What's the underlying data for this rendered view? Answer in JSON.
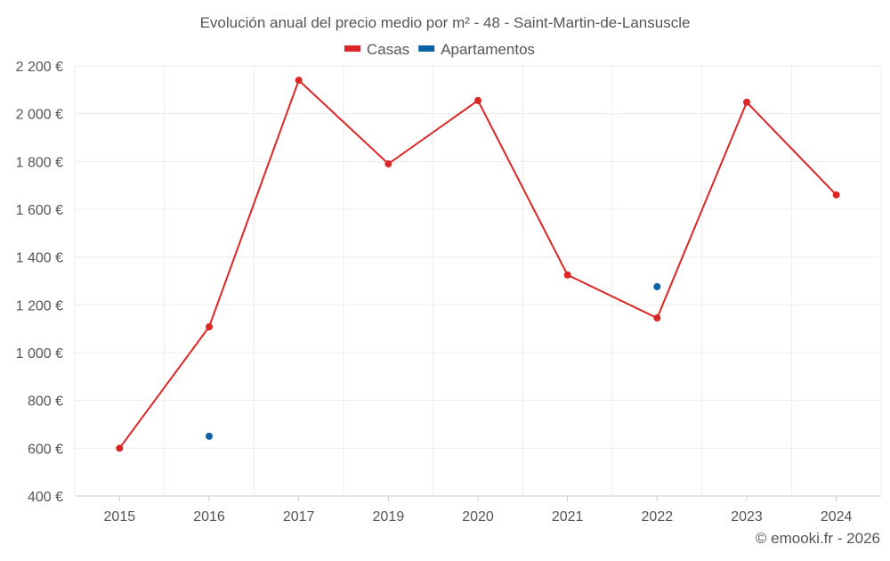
{
  "chart_data": {
    "type": "line",
    "title": "Evolución anual del precio medio por m² - 48 - Saint-Martin-de-Lansuscle",
    "categories": [
      "2015",
      "2016",
      "2017",
      "2019",
      "2020",
      "2021",
      "2022",
      "2023",
      "2024"
    ],
    "series": [
      {
        "name": "Casas",
        "color": "#dc2626",
        "values": [
          600,
          1108,
          2140,
          1790,
          2055,
          1325,
          1145,
          2048,
          1660
        ],
        "line": true
      },
      {
        "name": "Apartamentos",
        "color": "#0b62a4",
        "values": [
          null,
          650,
          null,
          null,
          null,
          null,
          1276,
          null,
          null
        ],
        "line": false
      }
    ],
    "ylim": [
      400,
      2200
    ],
    "yticks": [
      400,
      600,
      800,
      1000,
      1200,
      1400,
      1600,
      1800,
      2000,
      2200
    ],
    "ytick_labels": [
      "400 €",
      "600 €",
      "800 €",
      "1 000 €",
      "1 200 €",
      "1 400 €",
      "1 600 €",
      "1 800 €",
      "2 000 €",
      "2 200 €"
    ],
    "grid": true,
    "legend_position": "top-center",
    "credit": "© emooki.fr - 2026"
  }
}
